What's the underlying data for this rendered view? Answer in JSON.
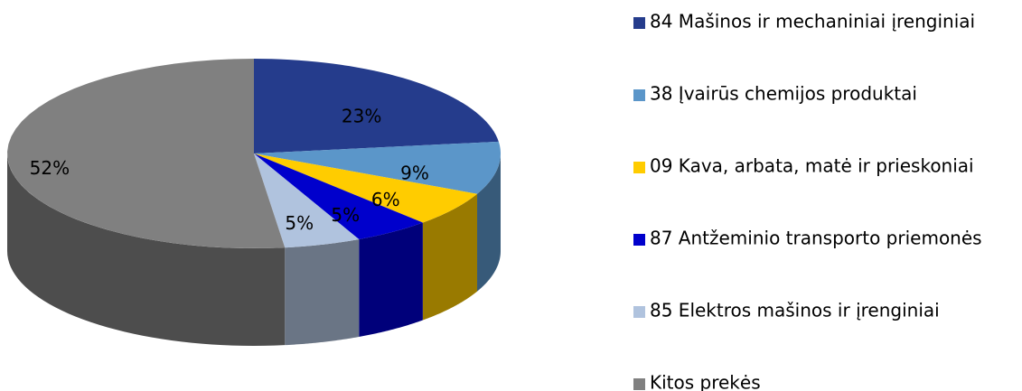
{
  "chart_data": {
    "type": "pie",
    "categories": [
      "84 Mašinos ir mechaniniai įrenginiai",
      "38 Įvairūs chemijos produktai",
      "09 Kava, arbata, matė ir prieskoniai",
      "87 Antžeminio transporto priemonės",
      "85 Elektros mašinos ir įrenginiai",
      "Kitos prekės"
    ],
    "values": [
      23,
      9,
      6,
      5,
      5,
      52
    ],
    "value_labels": [
      "23%",
      "9%",
      "6%",
      "5%",
      "5%",
      "52%"
    ],
    "colors": [
      "#253c8c",
      "#5b96c9",
      "#ffcc00",
      "#0000cc",
      "#b0c3de",
      "#808080"
    ],
    "legend": "right"
  }
}
